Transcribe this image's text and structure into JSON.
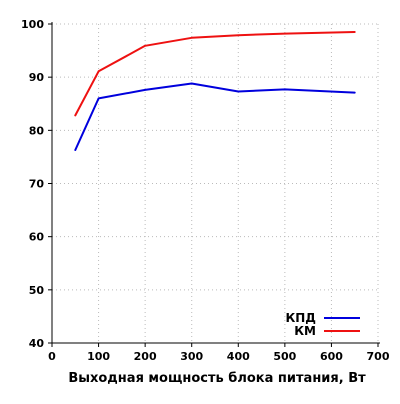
{
  "chart_data": {
    "type": "line",
    "title": "",
    "xlabel": "Выходная мощность блока питания, Вт",
    "ylabel": "",
    "xlim": [
      0,
      700
    ],
    "ylim": [
      40,
      100
    ],
    "xticks": [
      "0",
      "100",
      "200",
      "300",
      "400",
      "500",
      "600",
      "700"
    ],
    "yticks": [
      "40",
      "50",
      "60",
      "70",
      "80",
      "90",
      "100"
    ],
    "grid": true,
    "legend_position": "bottom-right",
    "series": [
      {
        "name": "КПД",
        "color": "#0000dd",
        "x": [
          50,
          100,
          200,
          300,
          400,
          500,
          650
        ],
        "y": [
          76.3,
          86.0,
          87.6,
          88.8,
          87.3,
          87.7,
          87.1
        ]
      },
      {
        "name": "КМ",
        "color": "#ee1111",
        "x": [
          50,
          100,
          200,
          300,
          400,
          500,
          650
        ],
        "y": [
          82.8,
          91.1,
          95.9,
          97.4,
          97.9,
          98.2,
          98.5
        ]
      }
    ]
  }
}
